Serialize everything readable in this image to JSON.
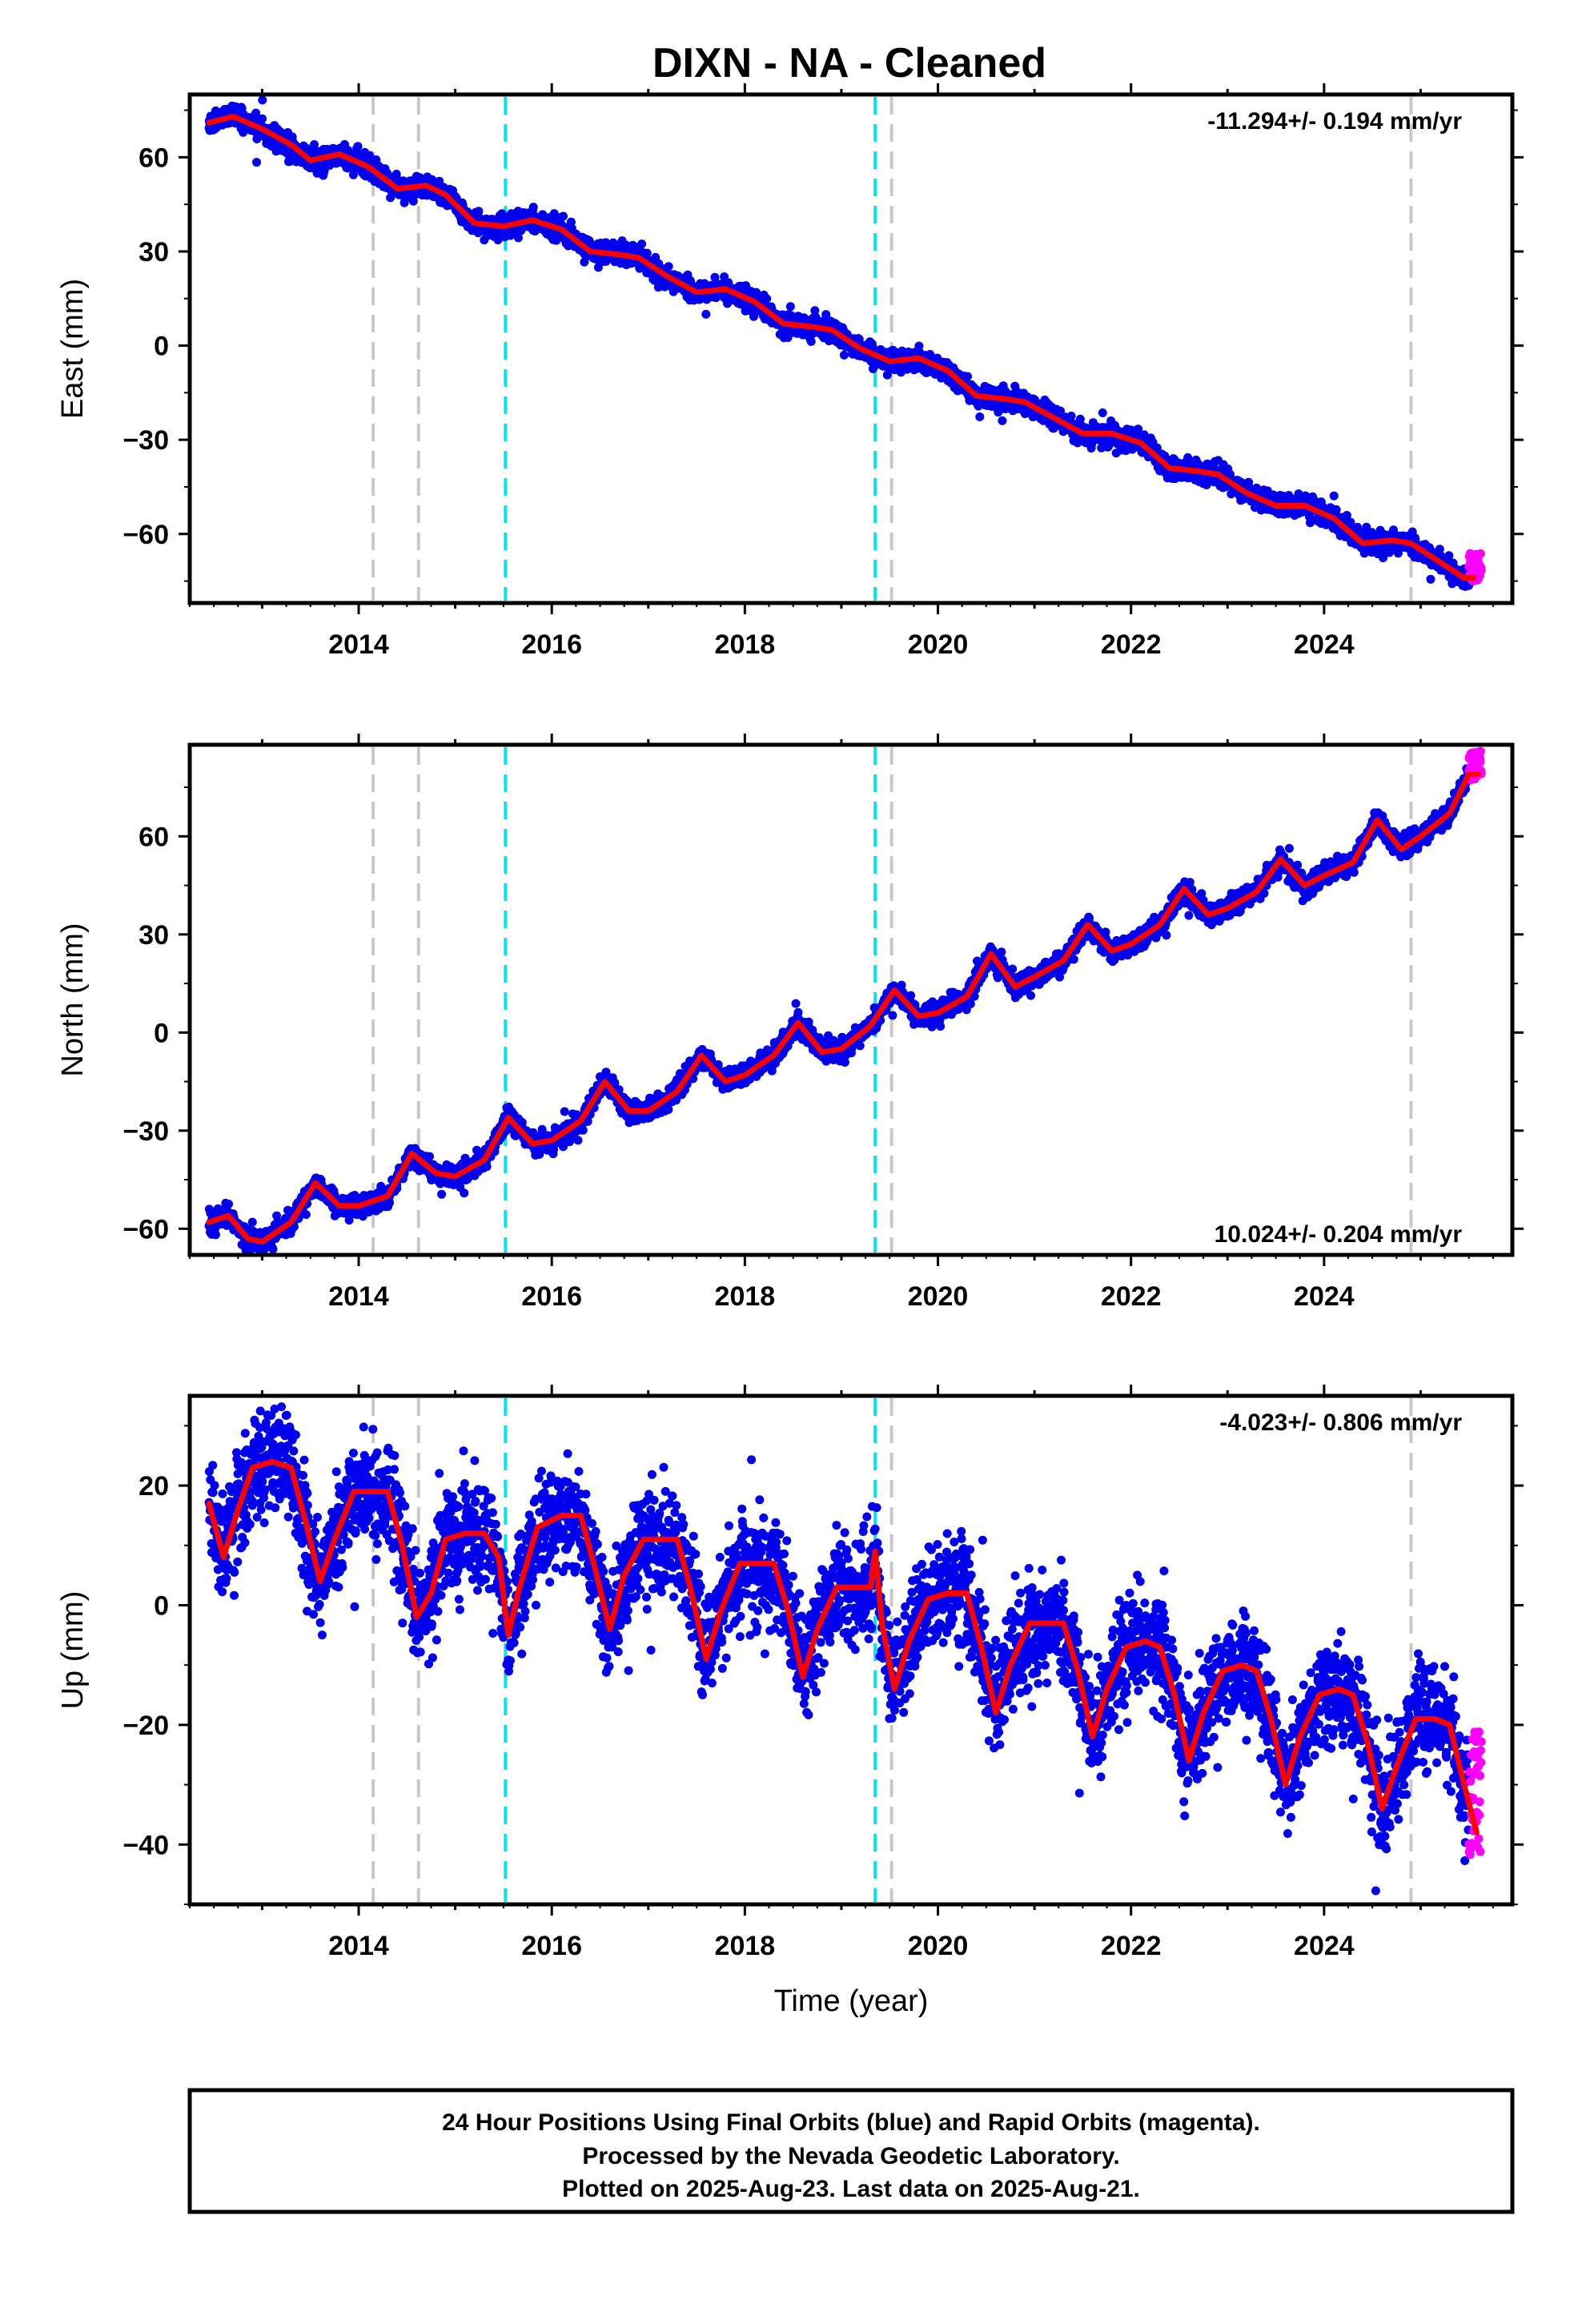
{
  "chart_data": [
    {
      "type": "scatter",
      "panel": "east",
      "title": "DIXN  - NA - Cleaned",
      "ylabel": "East (mm)",
      "xlabel": "",
      "xlim": [
        2012.25,
        2025.95
      ],
      "ylim": [
        -82,
        80
      ],
      "x_ticks": [
        2014,
        2016,
        2018,
        2020,
        2022,
        2024
      ],
      "y_ticks": [
        -60,
        -30,
        0,
        30,
        60
      ],
      "rate_text": "-11.294+/- 0.194 mm/yr",
      "rate_position": "top-right",
      "fit_points": [
        [
          2012.45,
          71
        ],
        [
          2012.7,
          73
        ],
        [
          2013.0,
          69
        ],
        [
          2013.3,
          64
        ],
        [
          2013.5,
          59
        ],
        [
          2013.8,
          61
        ],
        [
          2014.1,
          57
        ],
        [
          2014.4,
          50
        ],
        [
          2014.7,
          51
        ],
        [
          2014.9,
          48
        ],
        [
          2015.2,
          39
        ],
        [
          2015.5,
          38
        ],
        [
          2015.8,
          40
        ],
        [
          2016.1,
          37
        ],
        [
          2016.4,
          30
        ],
        [
          2016.7,
          29
        ],
        [
          2016.9,
          28
        ],
        [
          2017.2,
          22
        ],
        [
          2017.5,
          17
        ],
        [
          2017.8,
          18
        ],
        [
          2018.1,
          14
        ],
        [
          2018.4,
          7
        ],
        [
          2018.7,
          6
        ],
        [
          2018.9,
          5
        ],
        [
          2019.2,
          -1
        ],
        [
          2019.5,
          -5
        ],
        [
          2019.8,
          -4
        ],
        [
          2020.1,
          -8
        ],
        [
          2020.4,
          -16
        ],
        [
          2020.7,
          -17
        ],
        [
          2020.9,
          -18
        ],
        [
          2021.2,
          -23
        ],
        [
          2021.5,
          -28
        ],
        [
          2021.8,
          -28
        ],
        [
          2022.1,
          -31
        ],
        [
          2022.4,
          -39
        ],
        [
          2022.7,
          -40
        ],
        [
          2022.9,
          -41
        ],
        [
          2023.2,
          -47
        ],
        [
          2023.5,
          -51
        ],
        [
          2023.8,
          -51
        ],
        [
          2024.1,
          -55
        ],
        [
          2024.4,
          -63
        ],
        [
          2024.7,
          -62
        ],
        [
          2024.9,
          -63
        ],
        [
          2025.2,
          -69
        ],
        [
          2025.45,
          -74
        ],
        [
          2025.55,
          -74
        ]
      ],
      "final_orbit_series": {
        "name": "Final Orbits",
        "color": "#0000ee",
        "noise_sd_mm": 1.6,
        "x_range": [
          2012.45,
          2025.5
        ]
      },
      "rapid_orbit_series": {
        "name": "Rapid Orbits",
        "color": "#ff00ff",
        "x_range": [
          2025.5,
          2025.63
        ],
        "y_range": [
          -75,
          -66
        ]
      },
      "fit_color": "#ff0000"
    },
    {
      "type": "scatter",
      "panel": "north",
      "title": "",
      "ylabel": "North (mm)",
      "xlabel": "",
      "xlim": [
        2012.25,
        2025.95
      ],
      "ylim": [
        -68,
        88
      ],
      "x_ticks": [
        2014,
        2016,
        2018,
        2020,
        2022,
        2024
      ],
      "y_ticks": [
        -60,
        -30,
        0,
        30,
        60
      ],
      "rate_text": "10.024+/- 0.204 mm/yr",
      "rate_position": "bottom-right",
      "fit_points": [
        [
          2012.45,
          -58
        ],
        [
          2012.65,
          -56
        ],
        [
          2012.85,
          -63
        ],
        [
          2013.0,
          -64
        ],
        [
          2013.3,
          -58
        ],
        [
          2013.55,
          -46
        ],
        [
          2013.8,
          -53
        ],
        [
          2014.0,
          -53
        ],
        [
          2014.3,
          -50
        ],
        [
          2014.55,
          -37
        ],
        [
          2014.8,
          -43
        ],
        [
          2015.0,
          -44
        ],
        [
          2015.3,
          -39
        ],
        [
          2015.55,
          -26
        ],
        [
          2015.8,
          -34
        ],
        [
          2016.0,
          -33
        ],
        [
          2016.3,
          -27
        ],
        [
          2016.55,
          -15
        ],
        [
          2016.8,
          -24
        ],
        [
          2017.0,
          -24
        ],
        [
          2017.3,
          -18
        ],
        [
          2017.55,
          -7
        ],
        [
          2017.8,
          -15
        ],
        [
          2018.0,
          -13
        ],
        [
          2018.3,
          -7
        ],
        [
          2018.55,
          3
        ],
        [
          2018.8,
          -6
        ],
        [
          2019.0,
          -5
        ],
        [
          2019.3,
          2
        ],
        [
          2019.55,
          13
        ],
        [
          2019.8,
          5
        ],
        [
          2020.0,
          6
        ],
        [
          2020.3,
          11
        ],
        [
          2020.55,
          24
        ],
        [
          2020.8,
          14
        ],
        [
          2021.0,
          17
        ],
        [
          2021.3,
          22
        ],
        [
          2021.55,
          33
        ],
        [
          2021.8,
          25
        ],
        [
          2022.0,
          27
        ],
        [
          2022.3,
          33
        ],
        [
          2022.55,
          44
        ],
        [
          2022.8,
          36
        ],
        [
          2023.0,
          38
        ],
        [
          2023.3,
          43
        ],
        [
          2023.55,
          53
        ],
        [
          2023.8,
          45
        ],
        [
          2024.0,
          48
        ],
        [
          2024.3,
          52
        ],
        [
          2024.55,
          65
        ],
        [
          2024.8,
          56
        ],
        [
          2025.0,
          60
        ],
        [
          2025.3,
          67
        ],
        [
          2025.5,
          79
        ],
        [
          2025.6,
          79
        ]
      ],
      "final_orbit_series": {
        "name": "Final Orbits",
        "color": "#0000ee",
        "noise_sd_mm": 1.5,
        "x_range": [
          2012.45,
          2025.5
        ]
      },
      "rapid_orbit_series": {
        "name": "Rapid Orbits",
        "color": "#ff00ff",
        "x_range": [
          2025.5,
          2025.63
        ],
        "y_range": [
          77,
          86
        ]
      },
      "fit_color": "#ff0000"
    },
    {
      "type": "scatter",
      "panel": "up",
      "title": "",
      "ylabel": "Up (mm)",
      "xlabel": "Time (year)",
      "xlim": [
        2012.25,
        2025.95
      ],
      "ylim": [
        -50,
        35
      ],
      "x_ticks": [
        2014,
        2016,
        2018,
        2020,
        2022,
        2024
      ],
      "y_ticks": [
        -40,
        -20,
        0,
        20
      ],
      "rate_text": "-4.023+/- 0.806 mm/yr",
      "rate_position": "top-right",
      "fit_points": [
        [
          2012.45,
          17
        ],
        [
          2012.6,
          8
        ],
        [
          2012.75,
          16
        ],
        [
          2012.9,
          23
        ],
        [
          2013.1,
          24
        ],
        [
          2013.3,
          23
        ],
        [
          2013.45,
          14
        ],
        [
          2013.6,
          4
        ],
        [
          2013.75,
          11
        ],
        [
          2013.95,
          19
        ],
        [
          2014.15,
          19
        ],
        [
          2014.3,
          19
        ],
        [
          2014.45,
          10
        ],
        [
          2014.6,
          -2
        ],
        [
          2014.75,
          2
        ],
        [
          2014.9,
          11
        ],
        [
          2015.1,
          12
        ],
        [
          2015.3,
          12
        ],
        [
          2015.45,
          8
        ],
        [
          2015.55,
          -5
        ],
        [
          2015.65,
          2
        ],
        [
          2015.85,
          13
        ],
        [
          2016.1,
          15
        ],
        [
          2016.3,
          15
        ],
        [
          2016.45,
          6
        ],
        [
          2016.6,
          -4
        ],
        [
          2016.75,
          5
        ],
        [
          2016.95,
          11
        ],
        [
          2017.15,
          11
        ],
        [
          2017.3,
          11
        ],
        [
          2017.45,
          2
        ],
        [
          2017.6,
          -9
        ],
        [
          2017.75,
          -1
        ],
        [
          2017.95,
          7
        ],
        [
          2018.15,
          7
        ],
        [
          2018.3,
          7
        ],
        [
          2018.45,
          -1
        ],
        [
          2018.6,
          -12
        ],
        [
          2018.75,
          -4
        ],
        [
          2018.95,
          3
        ],
        [
          2019.15,
          3
        ],
        [
          2019.3,
          3
        ],
        [
          2019.35,
          9
        ],
        [
          2019.42,
          -3
        ],
        [
          2019.55,
          -14
        ],
        [
          2019.7,
          -6
        ],
        [
          2019.9,
          1
        ],
        [
          2020.1,
          2
        ],
        [
          2020.3,
          2
        ],
        [
          2020.45,
          -7
        ],
        [
          2020.6,
          -18
        ],
        [
          2020.75,
          -10
        ],
        [
          2020.95,
          -3
        ],
        [
          2021.15,
          -3
        ],
        [
          2021.3,
          -3
        ],
        [
          2021.45,
          -11
        ],
        [
          2021.6,
          -22
        ],
        [
          2021.75,
          -14
        ],
        [
          2021.95,
          -7
        ],
        [
          2022.15,
          -6
        ],
        [
          2022.3,
          -7
        ],
        [
          2022.45,
          -15
        ],
        [
          2022.6,
          -26
        ],
        [
          2022.75,
          -18
        ],
        [
          2022.95,
          -11
        ],
        [
          2023.15,
          -10
        ],
        [
          2023.3,
          -11
        ],
        [
          2023.45,
          -19
        ],
        [
          2023.6,
          -30
        ],
        [
          2023.75,
          -22
        ],
        [
          2023.95,
          -15
        ],
        [
          2024.15,
          -14
        ],
        [
          2024.3,
          -15
        ],
        [
          2024.45,
          -23
        ],
        [
          2024.6,
          -34
        ],
        [
          2024.75,
          -27
        ],
        [
          2024.95,
          -19
        ],
        [
          2025.15,
          -19
        ],
        [
          2025.3,
          -20
        ],
        [
          2025.45,
          -30
        ],
        [
          2025.58,
          -38
        ]
      ],
      "final_orbit_series": {
        "name": "Final Orbits",
        "color": "#0000ee",
        "noise_sd_mm": 4.2,
        "x_range": [
          2012.45,
          2025.5
        ]
      },
      "rapid_orbit_series": {
        "name": "Rapid Orbits",
        "color": "#ff00ff",
        "x_range": [
          2025.5,
          2025.63
        ],
        "y_range": [
          -42,
          -21
        ]
      },
      "fit_color": "#ff0000"
    }
  ],
  "event_lines": {
    "gray_years": [
      2014.15,
      2014.62,
      2019.52,
      2024.9
    ],
    "cyan_years": [
      2015.52,
      2019.35
    ],
    "gray_color": "#c8c8c8",
    "cyan_color": "#00e5ee"
  },
  "footer": {
    "line1": "24 Hour Positions Using Final Orbits (blue) and Rapid Orbits (magenta).",
    "line2": "Processed by the Nevada Geodetic Laboratory.",
    "line3": "Plotted on 2025-Aug-23. Last data on 2025-Aug-21."
  }
}
